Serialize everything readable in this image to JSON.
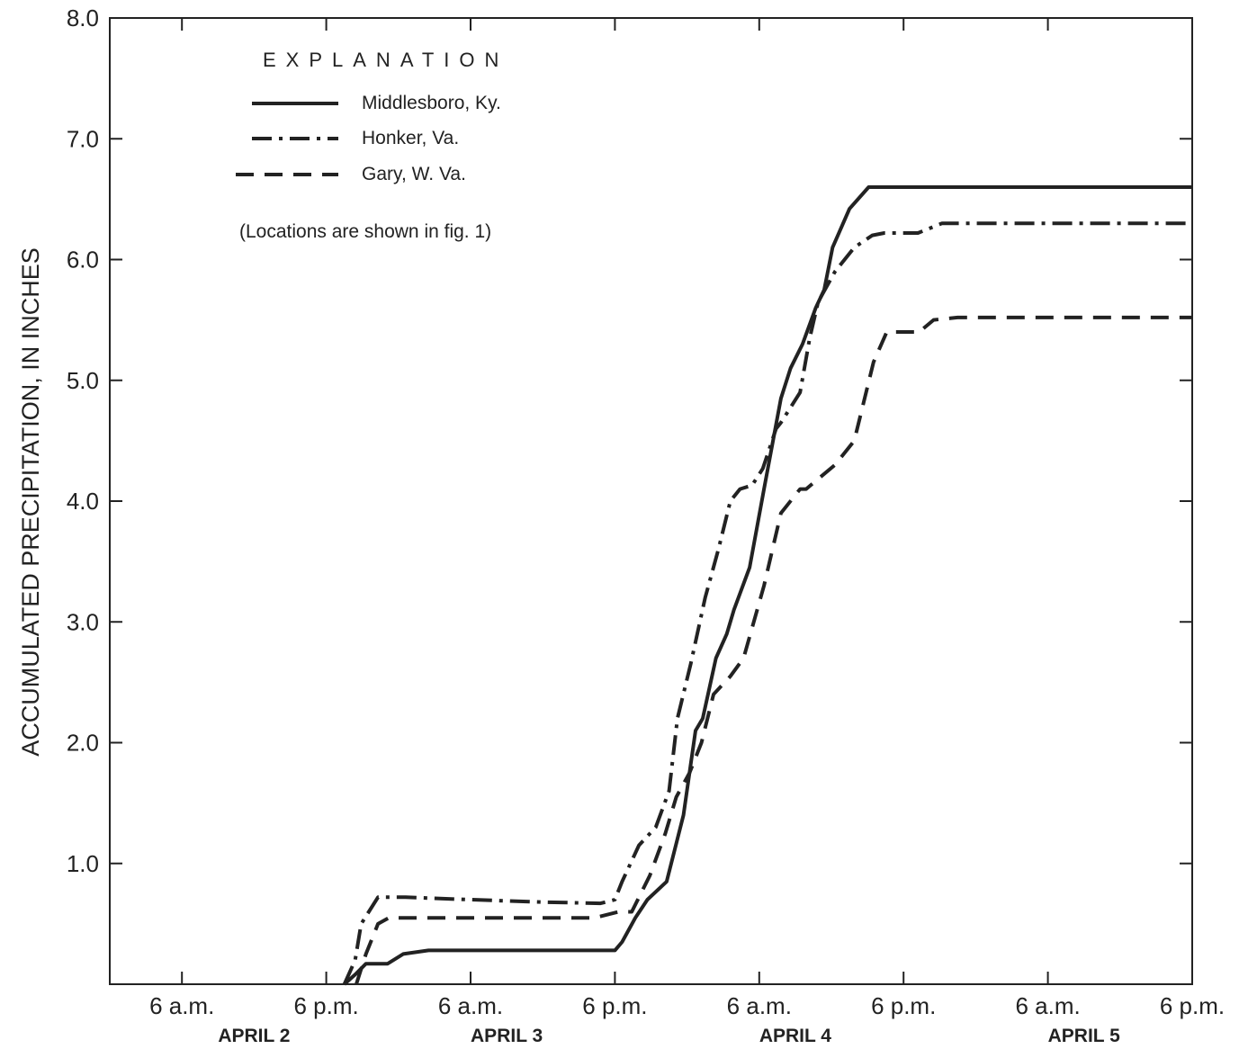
{
  "chart_data": {
    "type": "line",
    "title": "",
    "xlabel": "",
    "ylabel": "ACCUMULATED PRECIPITATION, IN INCHES",
    "ylim": [
      0,
      8.0
    ],
    "yticks": [
      1.0,
      2.0,
      3.0,
      4.0,
      5.0,
      6.0,
      7.0,
      8.0
    ],
    "ytick_labels": [
      "1.0",
      "2.0",
      "3.0",
      "4.0",
      "5.0",
      "6.0",
      "7.0",
      "8.0"
    ],
    "x_unit": "hours after midnight beginning April 2",
    "xlim": [
      0,
      90
    ],
    "x_ticks": [
      {
        "x": 6,
        "label": "6 a.m."
      },
      {
        "x": 18,
        "label": "6 p.m."
      },
      {
        "x": 30,
        "label": "6 a.m."
      },
      {
        "x": 42,
        "label": "6 p.m."
      },
      {
        "x": 54,
        "label": "6 a.m."
      },
      {
        "x": 66,
        "label": "6 p.m."
      },
      {
        "x": 78,
        "label": "6 a.m."
      },
      {
        "x": 90,
        "label": "6 p.m."
      }
    ],
    "date_labels": [
      {
        "x": 12,
        "label": "APRIL 2"
      },
      {
        "x": 33,
        "label": "APRIL 3"
      },
      {
        "x": 57,
        "label": "APRIL 4"
      },
      {
        "x": 81,
        "label": "APRIL 5"
      }
    ],
    "grid": false,
    "legend": {
      "title": "EXPLANATION",
      "note": "(Locations are shown in fig. 1)",
      "placement": "top-left"
    },
    "series": [
      {
        "name": "Middlesboro, Ky.",
        "style": "solid",
        "x": [
          19.5,
          20.4,
          21.3,
          22.4,
          23.1,
          24.4,
          26.5,
          30,
          36,
          42,
          42.6,
          43.7,
          44.7,
          46.3,
          47.7,
          48.7,
          49.3,
          50.4,
          51.3,
          51.9,
          53.2,
          54.4,
          55.8,
          56.6,
          57.6,
          58.7,
          59.4,
          60.1,
          61.5,
          63.1,
          64.9,
          65.4,
          66.1,
          67.2,
          68.2,
          69.3,
          70.5,
          74,
          80,
          86,
          90
        ],
        "y": [
          0.0,
          0.08,
          0.17,
          0.17,
          0.17,
          0.25,
          0.28,
          0.28,
          0.28,
          0.28,
          0.35,
          0.55,
          0.7,
          0.85,
          1.4,
          2.1,
          2.2,
          2.7,
          2.9,
          3.1,
          3.45,
          4.1,
          4.85,
          5.1,
          5.3,
          5.6,
          5.75,
          6.1,
          6.42,
          6.6,
          6.6,
          6.6,
          6.6,
          6.6,
          6.6,
          6.6,
          6.6,
          6.6,
          6.6,
          6.6,
          6.6
        ]
      },
      {
        "name": "Honker, Va.",
        "style": "dash-dot",
        "x": [
          19.5,
          20.4,
          20.9,
          22.3,
          24.6,
          30,
          36,
          40.8,
          42.0,
          42.6,
          44.0,
          45.4,
          46.5,
          47.2,
          48.3,
          49.5,
          50.6,
          51.6,
          52.4,
          53.4,
          54.3,
          55.4,
          55.8,
          57.4,
          58.2,
          58.9,
          60.3,
          61.9,
          63.4,
          64.4,
          65.6,
          66.1,
          67.2,
          69.2,
          71.5,
          74,
          78,
          83,
          86,
          90
        ],
        "y": [
          0.0,
          0.2,
          0.5,
          0.72,
          0.72,
          0.7,
          0.68,
          0.67,
          0.7,
          0.85,
          1.15,
          1.3,
          1.6,
          2.2,
          2.65,
          3.2,
          3.6,
          4.0,
          4.1,
          4.13,
          4.27,
          4.6,
          4.65,
          4.9,
          5.35,
          5.65,
          5.9,
          6.1,
          6.2,
          6.22,
          6.22,
          6.22,
          6.22,
          6.3,
          6.3,
          6.3,
          6.3,
          6.3,
          6.3,
          6.3
        ]
      },
      {
        "name": "Gary, W. Va.",
        "style": "dashed",
        "x": [
          20.5,
          21.3,
          22.3,
          23.2,
          30,
          36,
          40.3,
          42.3,
          43.4,
          44.9,
          46.2,
          47.1,
          48.2,
          49.2,
          50.2,
          51.6,
          52.7,
          54.4,
          55.8,
          57.4,
          57.9,
          60.3,
          61.9,
          63.5,
          64.6,
          66.4,
          67.3,
          68.5,
          70.5,
          74,
          78,
          82,
          86,
          90
        ],
        "y": [
          0.0,
          0.25,
          0.5,
          0.55,
          0.55,
          0.55,
          0.55,
          0.6,
          0.6,
          0.9,
          1.25,
          1.55,
          1.75,
          2.0,
          2.4,
          2.55,
          2.7,
          3.3,
          3.9,
          4.1,
          4.1,
          4.3,
          4.5,
          5.15,
          5.4,
          5.4,
          5.4,
          5.5,
          5.52,
          5.52,
          5.52,
          5.52,
          5.52,
          5.52
        ]
      }
    ]
  }
}
